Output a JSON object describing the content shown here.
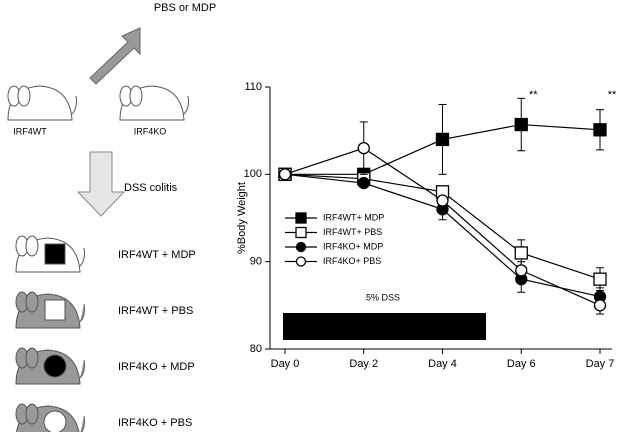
{
  "diagram": {
    "treatment": "PBS or MDP",
    "mice": [
      "IRF4WT",
      "IRF4KO"
    ],
    "step": "DSS colitis",
    "groups": [
      "IRF4WT + MDP",
      "IRF4WT + PBS",
      "IRF4KO + MDP",
      "IRF4KO + PBS"
    ]
  },
  "chart_data": {
    "type": "line",
    "y_label": "%Body Weight",
    "categories": [
      "Day 0",
      "Day 2",
      "Day 4",
      "Day 6",
      "Day 7"
    ],
    "ylim": [
      80,
      110
    ],
    "yticks": [
      80,
      90,
      100,
      110
    ],
    "legend": "left",
    "band_label": "5% DSS",
    "annotations": [
      {
        "text": "**",
        "x": "Day 6"
      },
      {
        "text": "**",
        "x": "Day 7"
      }
    ],
    "series": [
      {
        "name": "IRF4WT+ MDP",
        "color": "#000000",
        "marker": "square",
        "filled": true,
        "values": [
          100,
          100,
          104,
          105.7,
          105.1
        ],
        "errors": [
          null,
          null,
          4,
          3,
          2.3
        ]
      },
      {
        "name": "IRF4WT+ PBS",
        "color": "#000000",
        "marker": "square",
        "filled": false,
        "values": [
          100,
          99.5,
          98,
          91,
          88
        ],
        "errors": [
          null,
          null,
          null,
          1.5,
          1.3
        ]
      },
      {
        "name": "IRF4KO+ MDP",
        "color": "#000000",
        "marker": "circle",
        "filled": true,
        "values": [
          100,
          99,
          96,
          88,
          86
        ],
        "errors": [
          null,
          null,
          1.2,
          1.5,
          1
        ]
      },
      {
        "name": "IRF4KO+ PBS",
        "color": "#000000",
        "marker": "circle",
        "filled": false,
        "values": [
          100,
          103,
          97,
          89,
          85
        ],
        "errors": [
          null,
          3,
          null,
          1,
          1
        ]
      }
    ]
  }
}
